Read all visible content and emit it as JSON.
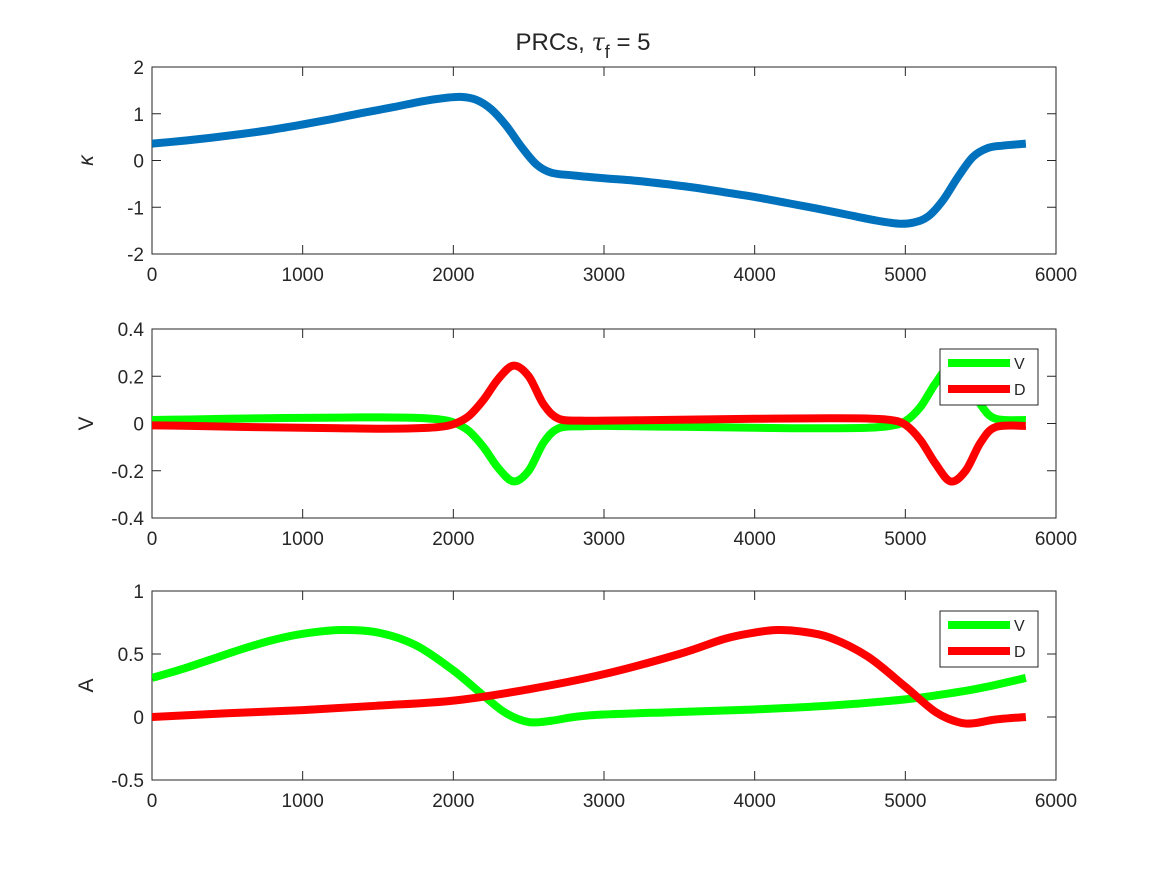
{
  "title": {
    "prefix": "PRCs, ",
    "symbol": "τ",
    "subscript": "f",
    "suffix": " = 5"
  },
  "chart_data": [
    {
      "type": "line",
      "ylabel": "κ",
      "xlim": [
        0,
        6000
      ],
      "ylim": [
        -2,
        2
      ],
      "xticks": [
        0,
        1000,
        2000,
        3000,
        4000,
        5000,
        6000
      ],
      "yticks": [
        -2,
        -1,
        0,
        1,
        2
      ],
      "grid": false,
      "legend": null,
      "series": [
        {
          "color": "#0072BD",
          "x": [
            0,
            200,
            400,
            600,
            800,
            1000,
            1200,
            1400,
            1600,
            1800,
            1950,
            2050,
            2150,
            2250,
            2350,
            2450,
            2550,
            2650,
            2800,
            3000,
            3200,
            3400,
            3600,
            3800,
            4000,
            4200,
            4400,
            4600,
            4800,
            4950,
            5050,
            5150,
            5250,
            5350,
            5450,
            5550,
            5650,
            5800
          ],
          "values": [
            0.36,
            0.42,
            0.49,
            0.57,
            0.66,
            0.77,
            0.89,
            1.02,
            1.14,
            1.27,
            1.34,
            1.36,
            1.3,
            1.1,
            0.75,
            0.3,
            -0.08,
            -0.26,
            -0.32,
            -0.38,
            -0.43,
            -0.5,
            -0.58,
            -0.68,
            -0.78,
            -0.9,
            -1.02,
            -1.15,
            -1.28,
            -1.35,
            -1.33,
            -1.2,
            -0.85,
            -0.35,
            0.08,
            0.27,
            0.32,
            0.36
          ]
        }
      ]
    },
    {
      "type": "line",
      "ylabel": "V",
      "xlim": [
        0,
        6000
      ],
      "ylim": [
        -0.4,
        0.4
      ],
      "xticks": [
        0,
        1000,
        2000,
        3000,
        4000,
        5000,
        6000
      ],
      "yticks": [
        -0.4,
        -0.2,
        0,
        0.2,
        0.4
      ],
      "grid": false,
      "legend": "top-right",
      "series": [
        {
          "name": "V",
          "color": "#00FF00",
          "x": [
            0,
            250,
            500,
            750,
            1000,
            1250,
            1500,
            1750,
            1900,
            2000,
            2100,
            2200,
            2300,
            2400,
            2500,
            2600,
            2700,
            2850,
            3000,
            3250,
            3500,
            3750,
            4000,
            4250,
            4500,
            4750,
            4900,
            5000,
            5100,
            5200,
            5300,
            5400,
            5500,
            5600,
            5800
          ],
          "values": [
            0.015,
            0.017,
            0.02,
            0.022,
            0.024,
            0.025,
            0.026,
            0.024,
            0.018,
            0.005,
            -0.03,
            -0.1,
            -0.19,
            -0.245,
            -0.2,
            -0.08,
            -0.02,
            -0.012,
            -0.01,
            -0.012,
            -0.014,
            -0.016,
            -0.018,
            -0.02,
            -0.02,
            -0.018,
            -0.01,
            0.01,
            0.07,
            0.17,
            0.245,
            0.2,
            0.08,
            0.02,
            0.015
          ]
        },
        {
          "name": "D",
          "color": "#FF0000",
          "x": [
            0,
            250,
            500,
            750,
            1000,
            1250,
            1500,
            1750,
            1900,
            2000,
            2100,
            2200,
            2300,
            2400,
            2500,
            2600,
            2700,
            2850,
            3000,
            3250,
            3500,
            3750,
            4000,
            4250,
            4500,
            4750,
            4900,
            5000,
            5100,
            5200,
            5300,
            5400,
            5500,
            5600,
            5800
          ],
          "values": [
            -0.008,
            -0.01,
            -0.013,
            -0.016,
            -0.018,
            -0.02,
            -0.022,
            -0.02,
            -0.015,
            -0.003,
            0.03,
            0.1,
            0.19,
            0.245,
            0.2,
            0.08,
            0.02,
            0.012,
            0.012,
            0.014,
            0.016,
            0.018,
            0.02,
            0.021,
            0.022,
            0.021,
            0.015,
            -0.005,
            -0.07,
            -0.17,
            -0.245,
            -0.2,
            -0.08,
            -0.015,
            -0.01
          ]
        }
      ]
    },
    {
      "type": "line",
      "ylabel": "A",
      "xlim": [
        0,
        6000
      ],
      "ylim": [
        -0.5,
        1
      ],
      "xticks": [
        0,
        1000,
        2000,
        3000,
        4000,
        5000,
        6000
      ],
      "yticks": [
        -0.5,
        0,
        0.5,
        1
      ],
      "grid": false,
      "legend": "top-right",
      "series": [
        {
          "name": "V",
          "color": "#00FF00",
          "x": [
            0,
            200,
            400,
            600,
            800,
            1000,
            1250,
            1500,
            1750,
            2000,
            2200,
            2350,
            2500,
            2650,
            2800,
            3000,
            3500,
            4000,
            4500,
            5000,
            5250,
            5500,
            5800
          ],
          "values": [
            0.31,
            0.38,
            0.46,
            0.54,
            0.61,
            0.66,
            0.69,
            0.67,
            0.57,
            0.37,
            0.17,
            0.03,
            -0.04,
            -0.03,
            0.0,
            0.02,
            0.04,
            0.06,
            0.09,
            0.14,
            0.18,
            0.23,
            0.31
          ]
        },
        {
          "name": "D",
          "color": "#FF0000",
          "x": [
            0,
            500,
            1000,
            1500,
            2000,
            2500,
            3000,
            3500,
            3800,
            4000,
            4150,
            4300,
            4500,
            4750,
            5000,
            5200,
            5350,
            5450,
            5600,
            5800
          ],
          "values": [
            0.0,
            0.03,
            0.055,
            0.09,
            0.13,
            0.22,
            0.34,
            0.5,
            0.62,
            0.67,
            0.69,
            0.68,
            0.63,
            0.48,
            0.24,
            0.04,
            -0.04,
            -0.05,
            -0.02,
            0.0
          ]
        }
      ]
    }
  ]
}
